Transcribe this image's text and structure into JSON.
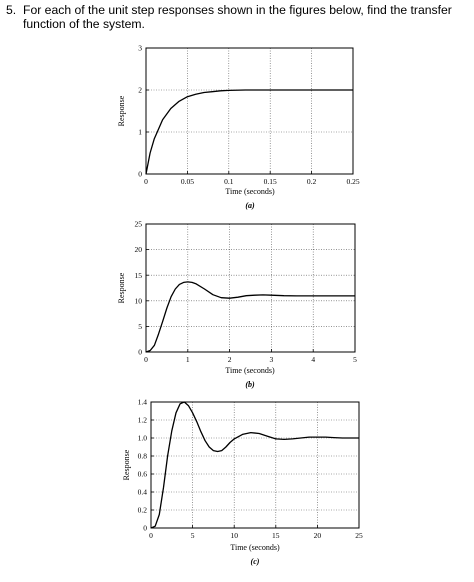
{
  "question": {
    "number": "5.",
    "text": "For each of the unit step responses shown in the figures below, find the transfer function of the system."
  },
  "chart_data": [
    {
      "type": "line",
      "caption": "(a)",
      "xlabel": "Time (seconds)",
      "ylabel": "Response",
      "xlim": [
        0,
        0.25
      ],
      "ylim": [
        0,
        3
      ],
      "xticks": [
        0,
        0.05,
        0.1,
        0.15,
        0.2,
        0.25
      ],
      "xtick_labels": [
        "0",
        "0.05",
        "0.1",
        "0.15",
        "0.2",
        "0.25"
      ],
      "yticks": [
        0,
        1,
        2,
        3
      ],
      "ytick_labels": [
        "0",
        "1",
        "2",
        "3"
      ],
      "grid": true,
      "series": [
        {
          "x": [
            0,
            0.005,
            0.01,
            0.02,
            0.03,
            0.04,
            0.05,
            0.06,
            0.07,
            0.08,
            0.09,
            0.1,
            0.12,
            0.15,
            0.2,
            0.25
          ],
          "y": [
            0,
            0.5,
            0.84,
            1.29,
            1.56,
            1.73,
            1.84,
            1.9,
            1.94,
            1.96,
            1.98,
            1.99,
            2.0,
            2.0,
            2.0,
            2.0
          ]
        }
      ]
    },
    {
      "type": "line",
      "caption": "(b)",
      "xlabel": "Time (seconds)",
      "ylabel": "Response",
      "xlim": [
        0,
        5
      ],
      "ylim": [
        0,
        25
      ],
      "xticks": [
        0,
        1,
        2,
        3,
        4,
        5
      ],
      "xtick_labels": [
        "0",
        "1",
        "2",
        "3",
        "4",
        "5"
      ],
      "yticks": [
        0,
        5,
        10,
        15,
        20,
        25
      ],
      "ytick_labels": [
        "0",
        "5",
        "10",
        "15",
        "20",
        "25"
      ],
      "grid": true,
      "series": [
        {
          "x": [
            0,
            0.1,
            0.2,
            0.3,
            0.4,
            0.5,
            0.6,
            0.7,
            0.8,
            0.9,
            1.0,
            1.1,
            1.2,
            1.4,
            1.6,
            1.8,
            2.0,
            2.2,
            2.4,
            2.6,
            2.8,
            3.0,
            3.3,
            3.6,
            4.0,
            4.5,
            5.0
          ],
          "y": [
            0,
            0.3,
            1.3,
            3.5,
            6.0,
            8.6,
            10.8,
            12.3,
            13.2,
            13.6,
            13.7,
            13.6,
            13.3,
            12.3,
            11.2,
            10.6,
            10.5,
            10.7,
            11.0,
            11.1,
            11.15,
            11.1,
            11.0,
            10.95,
            10.95,
            10.95,
            10.95
          ]
        }
      ]
    },
    {
      "type": "line",
      "caption": "(c)",
      "xlabel": "Time (seconds)",
      "ylabel": "Response",
      "xlim": [
        0,
        25
      ],
      "ylim": [
        0,
        1.4
      ],
      "xticks": [
        0,
        5,
        10,
        15,
        20,
        25
      ],
      "xtick_labels": [
        "0",
        "5",
        "10",
        "15",
        "20",
        "25"
      ],
      "yticks": [
        0,
        0.2,
        0.4,
        0.6,
        0.8,
        1.0,
        1.2,
        1.4
      ],
      "ytick_labels": [
        "0",
        "0.2",
        "0.4",
        "0.6",
        "0.8",
        "1.0",
        "1.2",
        "1.4"
      ],
      "grid": true,
      "series": [
        {
          "x": [
            0,
            0.5,
            1,
            1.5,
            2,
            2.5,
            3,
            3.5,
            4,
            4.5,
            5,
            5.5,
            6,
            6.5,
            7,
            7.5,
            8,
            8.5,
            9,
            9.5,
            10,
            11,
            12,
            13,
            14,
            15,
            16,
            17,
            18,
            19,
            20,
            21,
            22,
            23,
            24,
            25
          ],
          "y": [
            0,
            0.02,
            0.15,
            0.45,
            0.8,
            1.08,
            1.28,
            1.38,
            1.4,
            1.36,
            1.28,
            1.18,
            1.07,
            0.97,
            0.9,
            0.86,
            0.85,
            0.86,
            0.9,
            0.95,
            0.99,
            1.04,
            1.06,
            1.05,
            1.02,
            0.99,
            0.985,
            0.99,
            1.0,
            1.01,
            1.01,
            1.01,
            1.005,
            1.0,
            1.0,
            1.0
          ]
        }
      ]
    }
  ]
}
